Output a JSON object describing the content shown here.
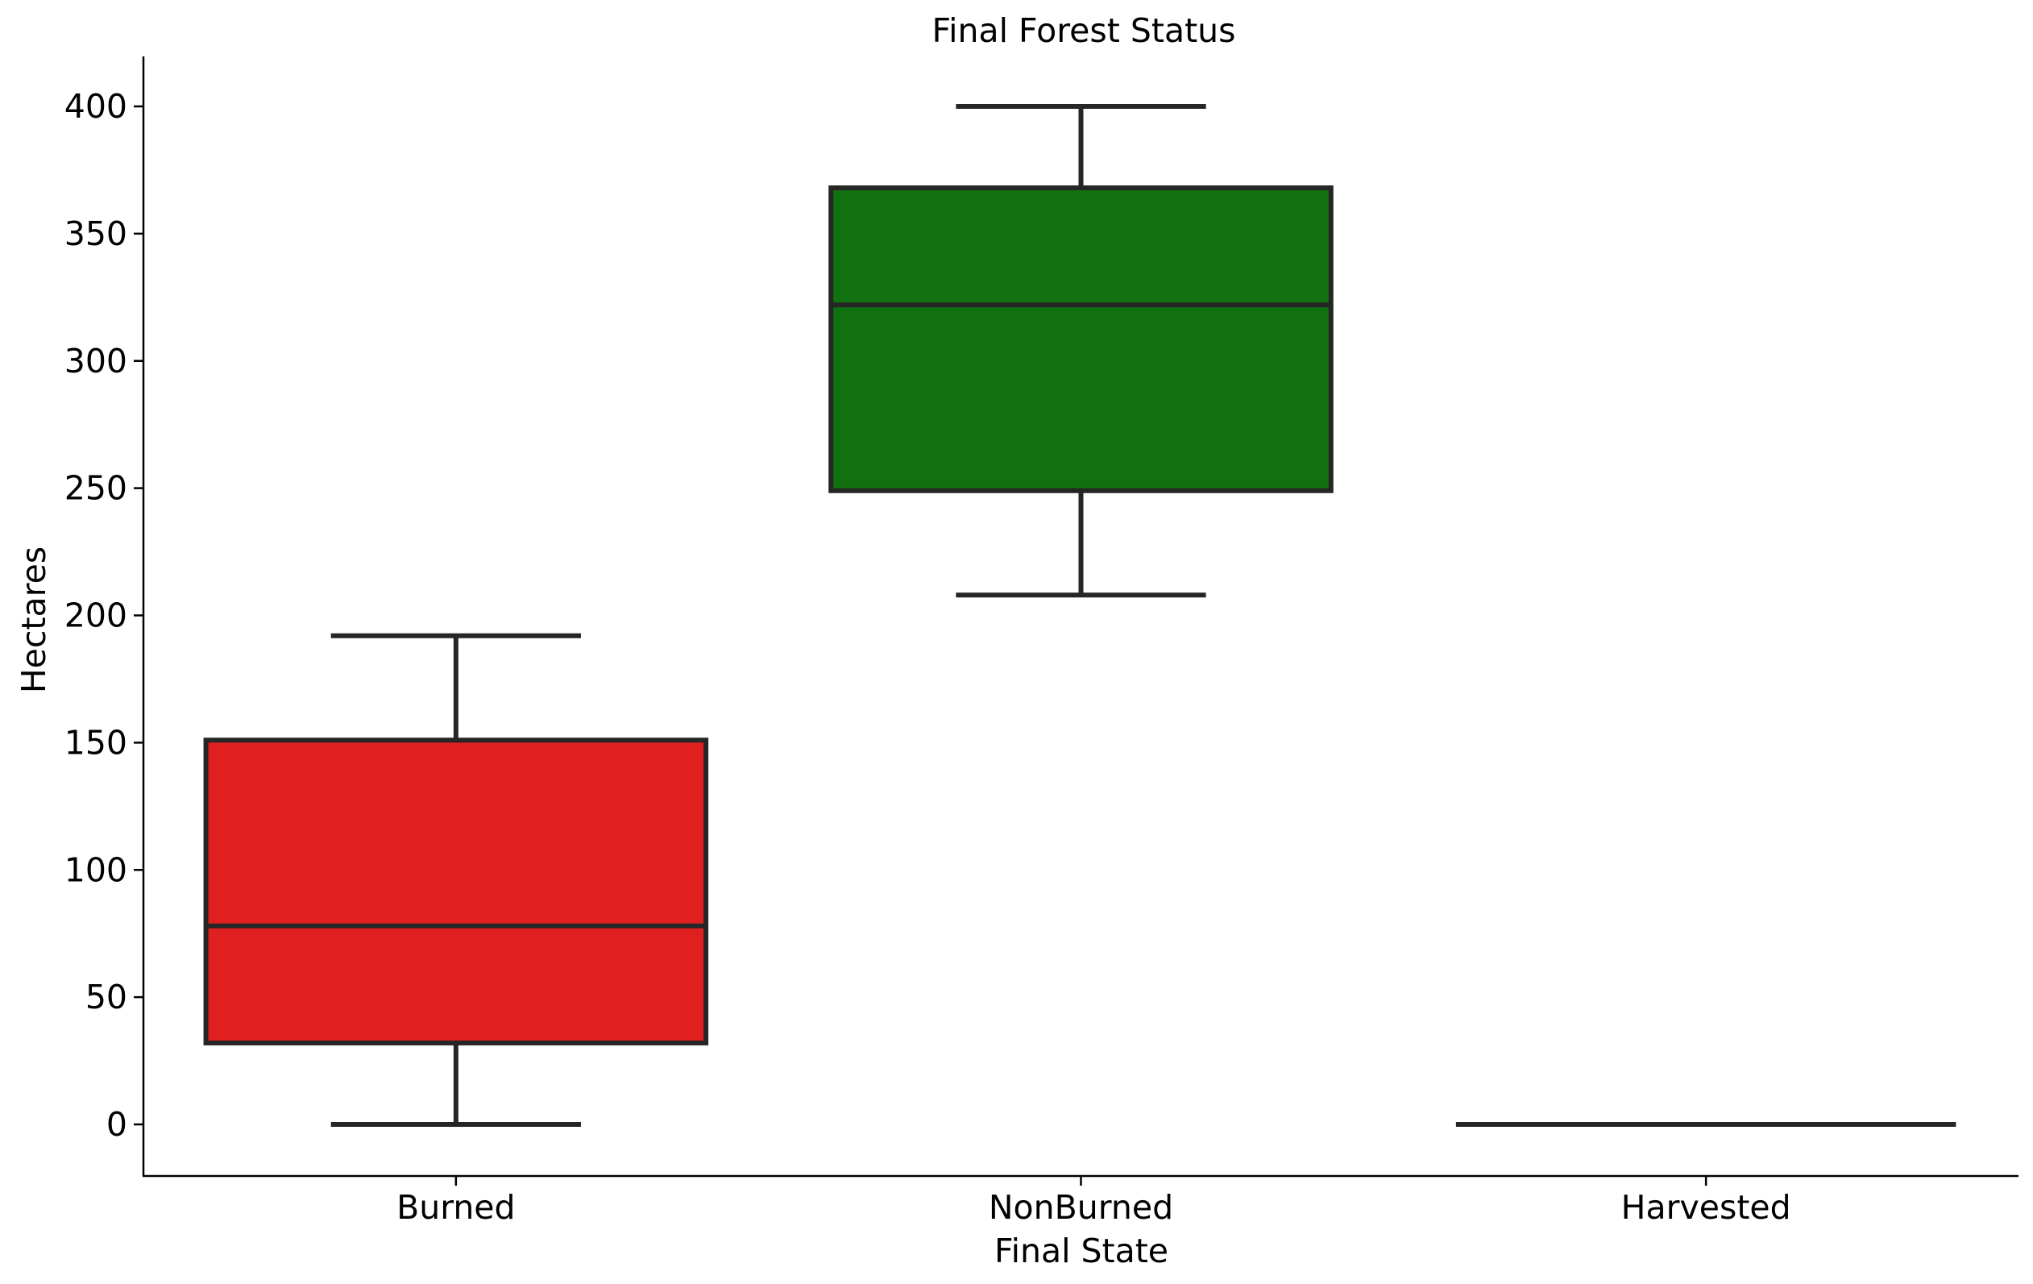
{
  "chart_data": {
    "type": "box",
    "title": "Final Forest Status",
    "xlabel": "Final State",
    "ylabel": "Hectares",
    "ylim": [
      -20,
      420
    ],
    "yticks": [
      0,
      50,
      100,
      150,
      200,
      250,
      300,
      350,
      400
    ],
    "categories": [
      "Burned",
      "NonBurned",
      "Harvested"
    ],
    "boxes": [
      {
        "category": "Burned",
        "whisker_low": 0,
        "q1": 32,
        "median": 78,
        "q3": 151,
        "whisker_high": 192,
        "color": "#e02020"
      },
      {
        "category": "NonBurned",
        "whisker_low": 208,
        "q1": 249,
        "median": 322,
        "q3": 368,
        "whisker_high": 400,
        "color": "#117111"
      },
      {
        "category": "Harvested",
        "whisker_low": 0,
        "q1": 0,
        "median": 0,
        "q3": 0,
        "whisker_high": 0,
        "color": "#3a7bbf"
      }
    ],
    "line_color": "#262626",
    "grid": false,
    "spines": [
      "left",
      "bottom"
    ]
  }
}
